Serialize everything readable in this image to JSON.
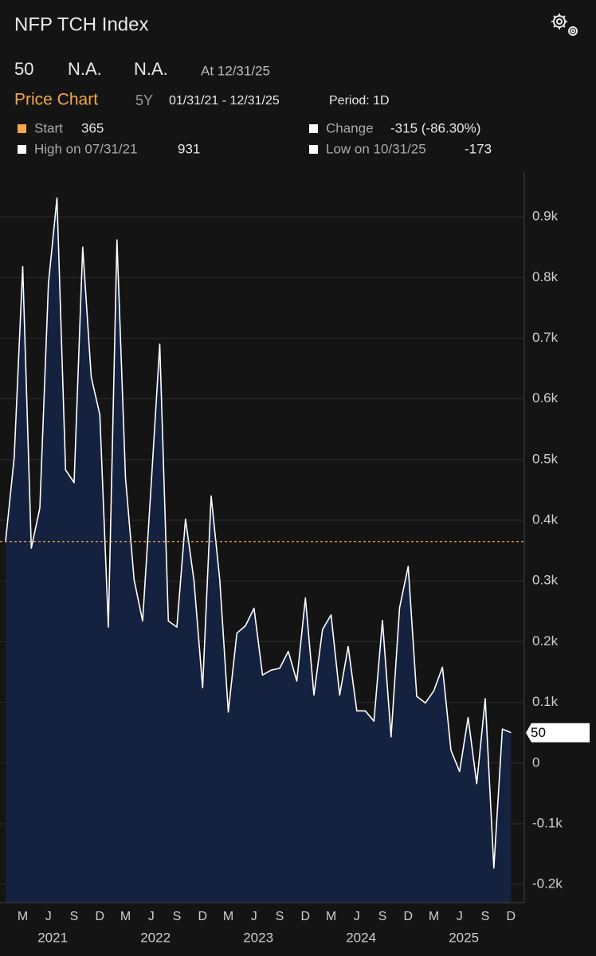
{
  "header": {
    "title": "NFP TCH  Index",
    "field_1": "N.A.",
    "field_2": "N.A.",
    "as_of": "At 12/31/25",
    "tab": "Price Chart",
    "range": "5Y",
    "dates": "01/31/21 - 12/31/25",
    "period": "Period: 1D"
  },
  "legend": {
    "start": "Start",
    "change": "Change",
    "change_label": "-315 (-86.30%)",
    "high": "High on 07/31/21",
    "low": "Low on 10/31/25"
  },
  "chart_data": {
    "type": "area",
    "categories": [
      "2021-01",
      "2021-02",
      "2021-03",
      "2021-04",
      "2021-05",
      "2021-06",
      "2021-07",
      "2021-08",
      "2021-09",
      "2021-10",
      "2021-11",
      "2021-12",
      "2022-01",
      "2022-02",
      "2022-03",
      "2022-04",
      "2022-05",
      "2022-06",
      "2022-07",
      "2022-08",
      "2022-09",
      "2022-10",
      "2022-11",
      "2022-12",
      "2023-01",
      "2023-02",
      "2023-03",
      "2023-04",
      "2023-05",
      "2023-06",
      "2023-07",
      "2023-08",
      "2023-09",
      "2023-10",
      "2023-11",
      "2023-12",
      "2024-01",
      "2024-02",
      "2024-03",
      "2024-04",
      "2024-05",
      "2024-06",
      "2024-07",
      "2024-08",
      "2024-09",
      "2024-10",
      "2024-11",
      "2024-12",
      "2025-01",
      "2025-02",
      "2025-03",
      "2025-04",
      "2025-05",
      "2025-06",
      "2025-07",
      "2025-08",
      "2025-09",
      "2025-10",
      "2025-11",
      "2025-12"
    ],
    "series": [
      {
        "name": "NFP TCH Index",
        "color": "#ffffff",
        "fill": "#14213f",
        "values": [
          365,
          503,
          818,
          354,
          420,
          790,
          931,
          483,
          462,
          850,
          636,
          574,
          224,
          862,
          470,
          302,
          234,
          460,
          690,
          234,
          224,
          402,
          300,
          124,
          440,
          302,
          84,
          214,
          226,
          255,
          145,
          153,
          156,
          184,
          135,
          272,
          112,
          220,
          244,
          112,
          192,
          86,
          86,
          69,
          235,
          43,
          256,
          324,
          110,
          99,
          119,
          158,
          21,
          -14,
          75,
          -34,
          106,
          -173,
          56,
          50
        ]
      }
    ],
    "ylim": [
      -230,
      975
    ],
    "yticks": [
      {
        "value": -200,
        "label": "-0.2k"
      },
      {
        "value": -100,
        "label": "-0.1k"
      },
      0,
      {
        "value": 100,
        "label": "0.1k"
      },
      {
        "value": 200,
        "label": "0.2k"
      },
      {
        "value": 300,
        "label": "0.3k"
      },
      {
        "value": 400,
        "label": "0.4k"
      },
      {
        "value": 500,
        "label": "0.5k"
      },
      {
        "value": 600,
        "label": "0.6k"
      },
      {
        "value": 700,
        "label": "0.7k"
      },
      {
        "value": 800,
        "label": "0.8k"
      },
      {
        "value": 900,
        "label": "0.9k"
      }
    ],
    "xticks": [
      {
        "value": "2021-03",
        "label": "M"
      },
      {
        "value": "2021-06",
        "label": "J"
      },
      {
        "value": "2021-09",
        "label": "S"
      },
      {
        "value": "2021-12",
        "label": "D"
      },
      {
        "value": "2022-03",
        "label": "M"
      },
      {
        "value": "2022-06",
        "label": "J"
      },
      {
        "value": "2022-09",
        "label": "S"
      },
      {
        "value": "2022-12",
        "label": "D"
      },
      {
        "value": "2023-03",
        "label": "M"
      },
      {
        "value": "2023-06",
        "label": "J"
      },
      {
        "value": "2023-09",
        "label": "S"
      },
      {
        "value": "2023-12",
        "label": "D"
      },
      {
        "value": "2024-03",
        "label": "M"
      },
      {
        "value": "2024-06",
        "label": "J"
      },
      {
        "value": "2024-09",
        "label": "S"
      },
      {
        "value": "2024-12",
        "label": "D"
      },
      {
        "value": "2025-03",
        "label": "M"
      },
      {
        "value": "2025-06",
        "label": "J"
      },
      {
        "value": "2025-09",
        "label": "S"
      },
      {
        "value": "2025-12",
        "label": "D"
      }
    ],
    "years": [
      2021,
      2022,
      2023,
      2024,
      2025
    ],
    "reference_color": "#f4a64a",
    "grid": true
  }
}
